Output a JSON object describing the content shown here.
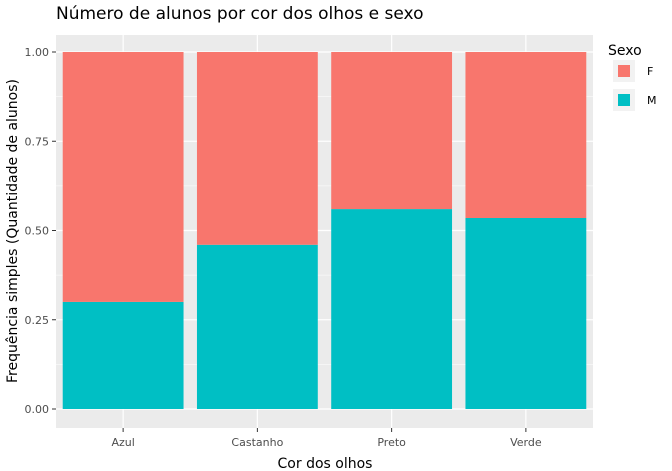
{
  "chart_data": {
    "type": "bar",
    "stacked": true,
    "title": "Número de alunos por cor dos olhos e sexo",
    "xlabel": "Cor dos olhos",
    "ylabel": "Frequência simples (Quantidade de alunos)",
    "categories": [
      "Azul",
      "Castanho",
      "Preto",
      "Verde"
    ],
    "series": [
      {
        "name": "M",
        "values": [
          0.3,
          0.46,
          0.56,
          0.535
        ]
      },
      {
        "name": "F",
        "values": [
          0.7,
          0.54,
          0.44,
          0.465
        ]
      }
    ],
    "ylim": [
      0,
      1
    ],
    "yticks": [
      "0.00",
      "0.25",
      "0.50",
      "0.75",
      "1.00"
    ],
    "grid": true,
    "legend": {
      "title": "Sexo",
      "position": "right",
      "entries": [
        "F",
        "M"
      ]
    },
    "colors": {
      "F": "#F8766D",
      "M": "#00BFC4",
      "panel": "#EBEBEB",
      "grid": "#FFFFFF"
    }
  }
}
